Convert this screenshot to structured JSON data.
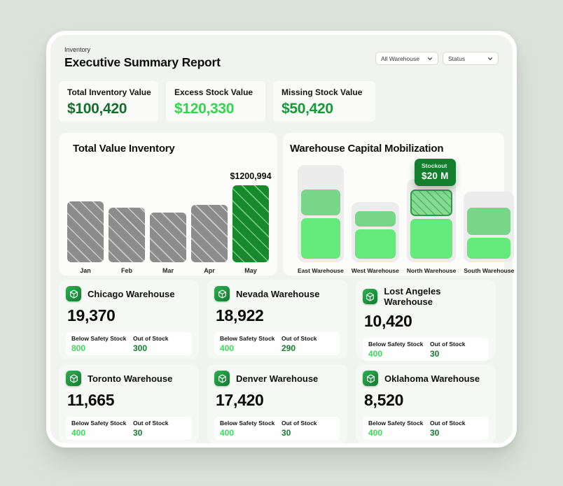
{
  "header": {
    "eyebrow": "Inventory",
    "title": "Executive Summary Report",
    "filters": [
      {
        "label": "All Warehouse"
      },
      {
        "label": "Status"
      }
    ]
  },
  "stats": [
    {
      "label": "Total Inventory Value",
      "value": "$100,420",
      "color": "#156e2d"
    },
    {
      "label": "Excess Stock Value",
      "value": "$120,330",
      "color": "#31d64e"
    },
    {
      "label": "Missing Stock Value",
      "value": "$50,420",
      "color": "#169a39"
    }
  ],
  "chart_data": [
    {
      "type": "bar",
      "title": "Total Value Inventory",
      "categories": [
        "Jan",
        "Feb",
        "Mar",
        "Apr",
        "May"
      ],
      "values": [
        949000,
        851000,
        775000,
        895000,
        1200994
      ],
      "ylim": [
        0,
        1200994
      ],
      "highlight_index": 4,
      "annotation_label": "$1200,994",
      "bar_color": "#8c8c8c",
      "highlight_color": "#17882b",
      "hatch": true,
      "grid": false
    },
    {
      "type": "bar",
      "title": "Warehouse Capital Mobilization",
      "categories": [
        "East Warehouse",
        "West Warehouse",
        "North Warehouse",
        "South Warehouse"
      ],
      "columns": [
        {
          "name": "East Warehouse",
          "container_h": 139,
          "segments": [
            {
              "kind": "allocated",
              "shade": "medium",
              "h": 37
            },
            {
              "kind": "allocated",
              "shade": "bright",
              "h": 58
            }
          ]
        },
        {
          "name": "West Warehouse",
          "container_h": 86,
          "segments": [
            {
              "kind": "allocated",
              "shade": "medium",
              "h": 22
            },
            {
              "kind": "allocated",
              "shade": "bright",
              "h": 42
            }
          ]
        },
        {
          "name": "North Warehouse",
          "container_h": 119,
          "segments": [
            {
              "kind": "stockout",
              "shade": "hatched",
              "h": 38
            },
            {
              "kind": "allocated",
              "shade": "bright",
              "h": 57
            }
          ]
        },
        {
          "name": "South Warehouse",
          "container_h": 101,
          "segments": [
            {
              "kind": "allocated",
              "shade": "medium",
              "h": 39
            },
            {
              "kind": "allocated",
              "shade": "bright",
              "h": 30
            }
          ]
        }
      ],
      "tooltip": {
        "label": "Stockout",
        "value": "$20 M",
        "target": "North Warehouse",
        "color": "#137e2e"
      },
      "colors": {
        "container": "#ececec",
        "medium": "#77d689",
        "bright": "#64ea7a",
        "hatched": "#83dc93"
      }
    }
  ],
  "warehouse_labels": {
    "below": "Below Safety Stock",
    "out": "Out of Stock"
  },
  "warehouses": [
    {
      "name": "Chicago Warehouse",
      "total": "19,370",
      "below_safety_stock": "800",
      "out_of_stock": "300"
    },
    {
      "name": "Nevada Warehouse",
      "total": "18,922",
      "below_safety_stock": "400",
      "out_of_stock": "290"
    },
    {
      "name": "Lost Angeles Warehouse",
      "total": "10,420",
      "below_safety_stock": "400",
      "out_of_stock": "30"
    },
    {
      "name": "Toronto Warehouse",
      "total": "11,665",
      "below_safety_stock": "400",
      "out_of_stock": "30"
    },
    {
      "name": "Denver Warehouse",
      "total": "17,420",
      "below_safety_stock": "400",
      "out_of_stock": "30"
    },
    {
      "name": "Oklahoma Warehouse",
      "total": "8,520",
      "below_safety_stock": "400",
      "out_of_stock": "30"
    }
  ]
}
